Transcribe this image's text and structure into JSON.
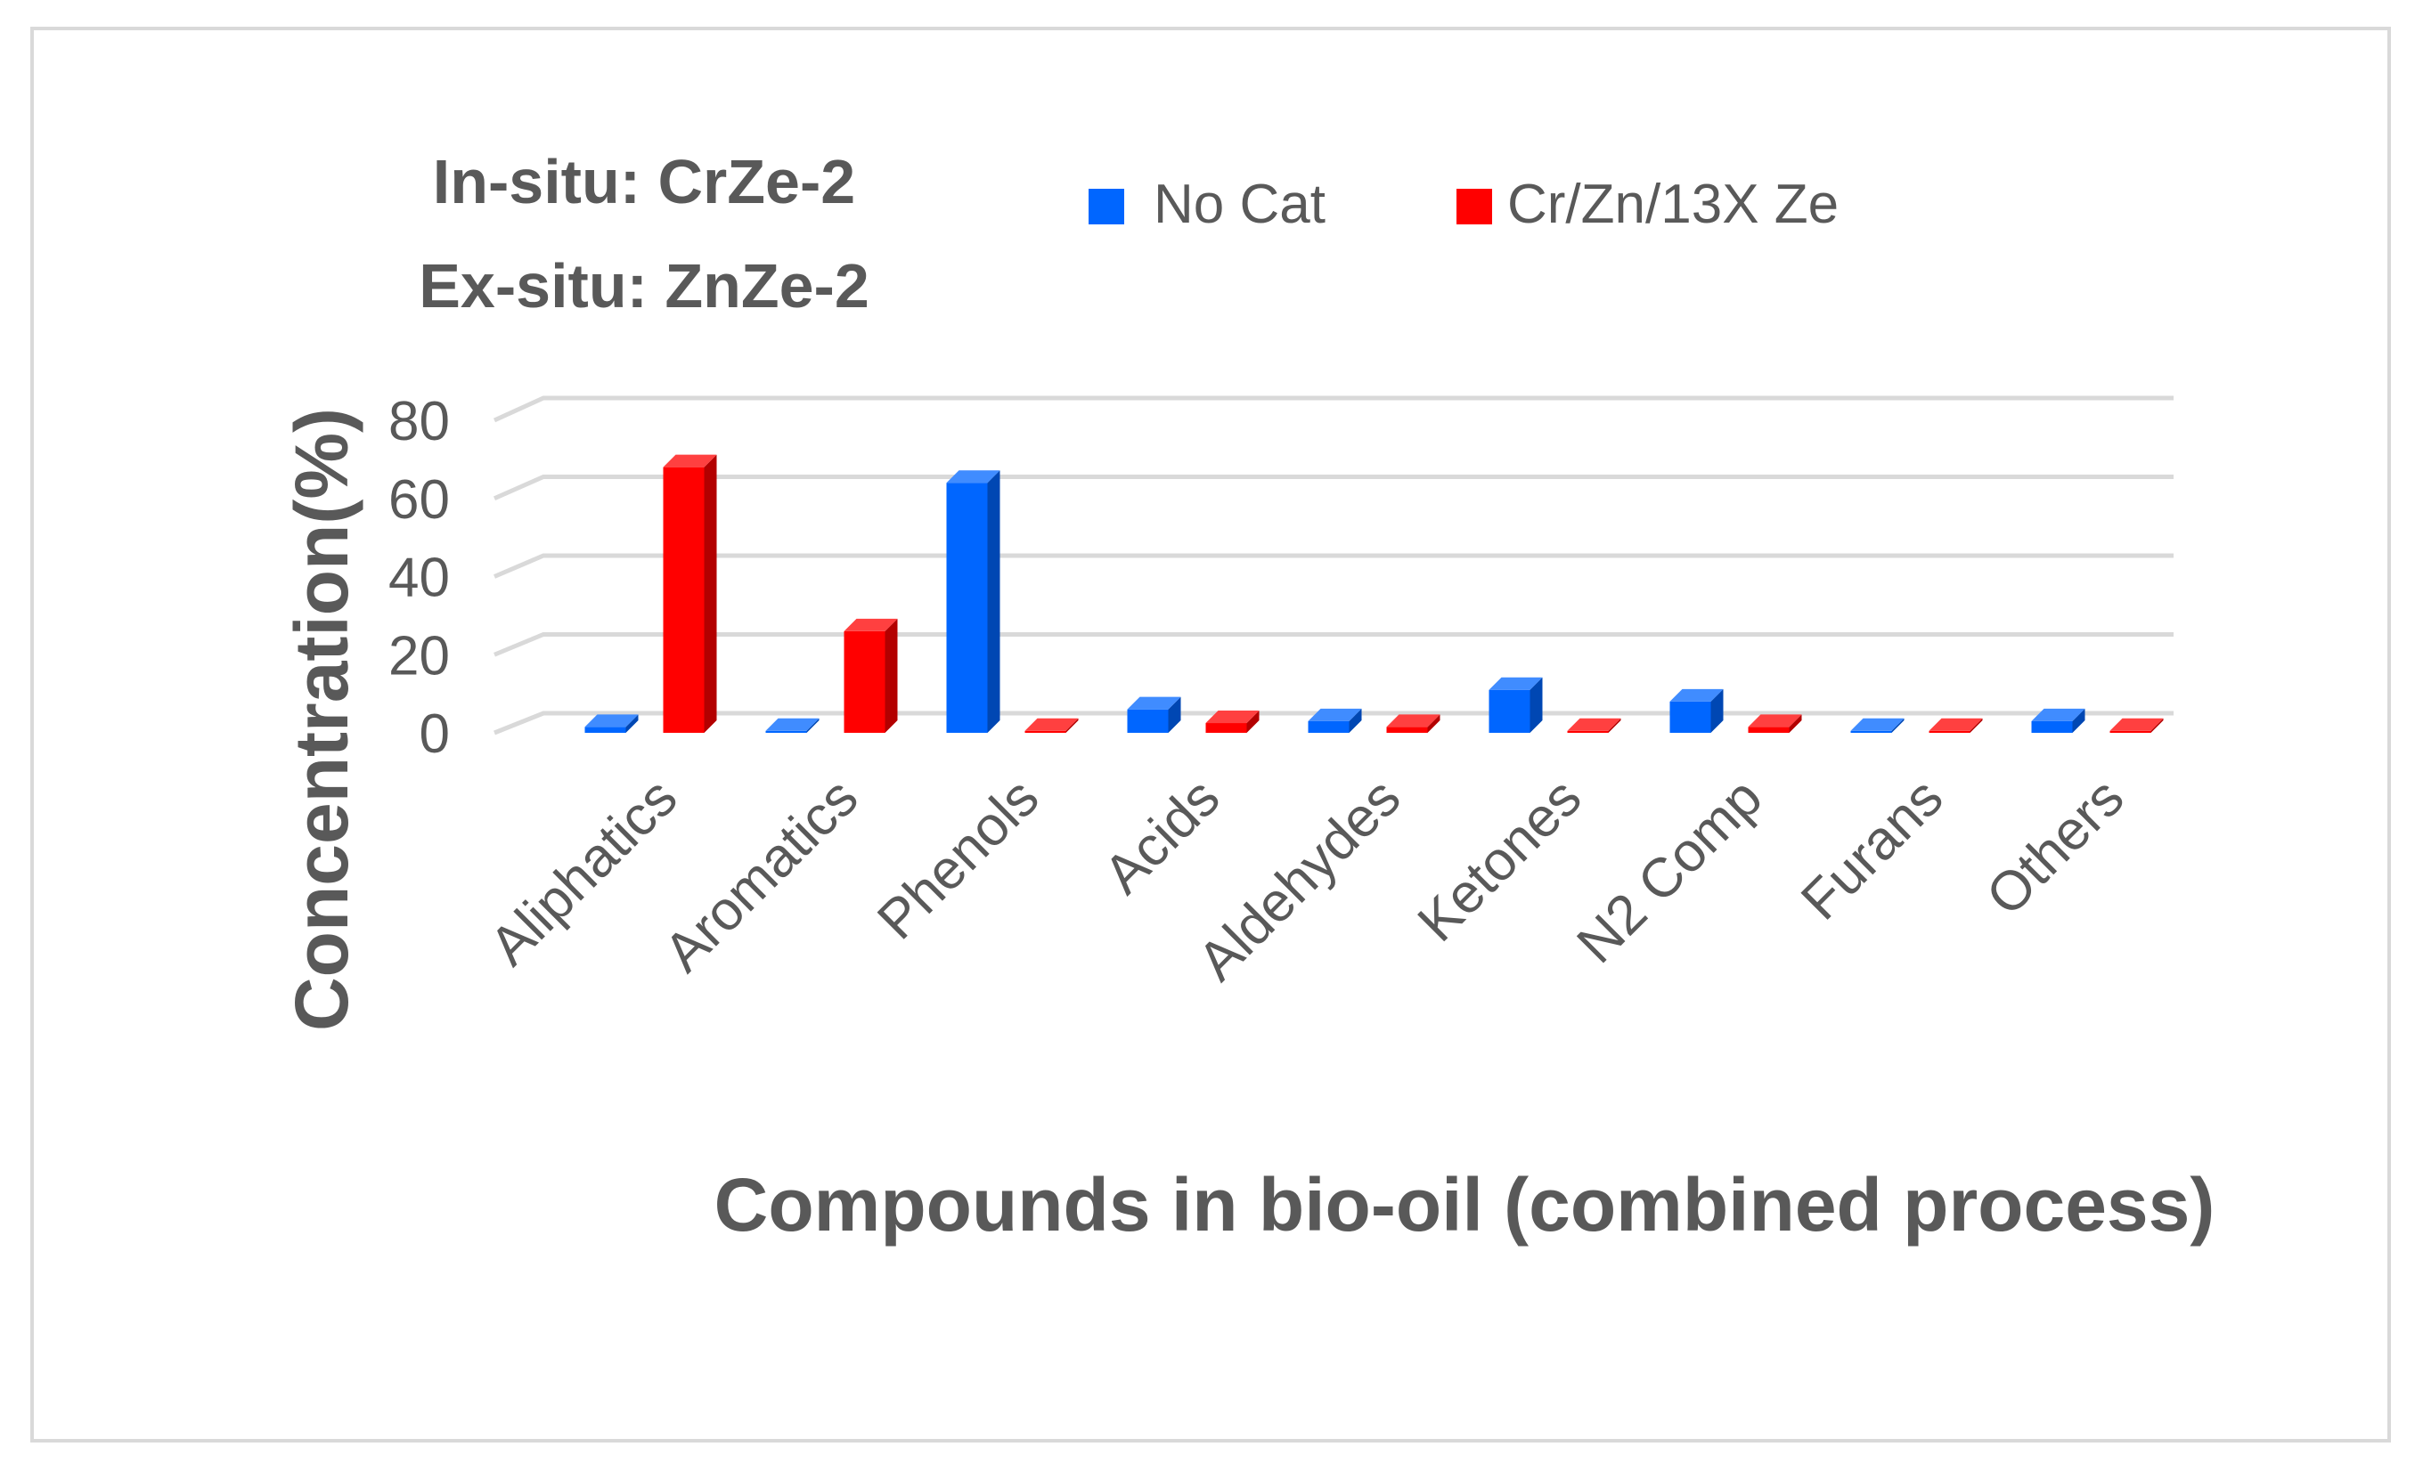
{
  "chart_data": {
    "type": "bar",
    "annotations": [
      "In-situ: CrZe-2",
      "Ex-situ: ZnZe-2"
    ],
    "categories": [
      "Aliphatics",
      "Aromatics",
      "Phenols",
      "Acids",
      "Aldehydes",
      "Ketones",
      "N2 Comp",
      "Furans",
      "Others"
    ],
    "series": [
      {
        "name": "No Cat",
        "color": "#0066ff",
        "values": [
          1.5,
          0.5,
          64,
          6,
          3,
          11,
          8,
          0.5,
          3
        ]
      },
      {
        "name": "Cr/Zn/13X Ze",
        "color": "#ff0000",
        "values": [
          68,
          26,
          0.5,
          2.5,
          1.5,
          0.5,
          1.5,
          0.5,
          0.5
        ]
      }
    ],
    "xlabel": "Compounds in bio-oil (combined process)",
    "ylabel": "Concentration(%)",
    "yticks": [
      0,
      20,
      40,
      60,
      80
    ],
    "ylim": [
      0,
      80
    ],
    "grid": true,
    "legend_position": "top"
  }
}
